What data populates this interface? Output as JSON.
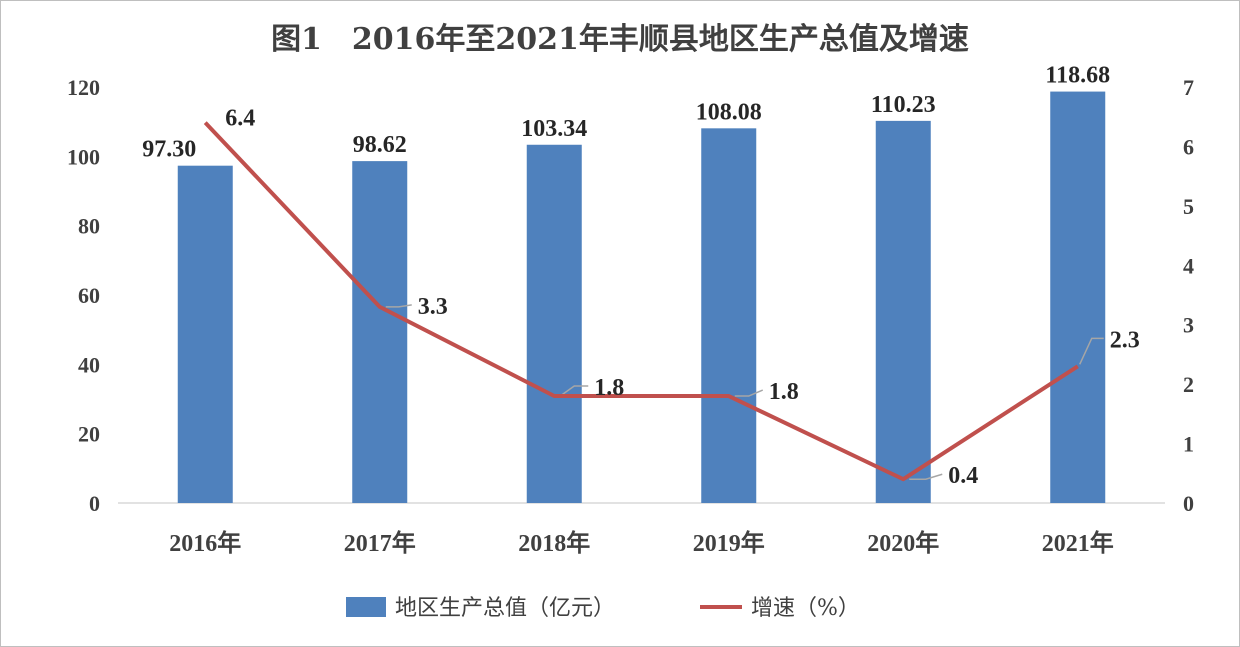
{
  "chart_data": {
    "type": "bar+line",
    "title": "图1　2016年至2021年丰顺县地区生产总值及增速",
    "categories": [
      "2016年",
      "2017年",
      "2018年",
      "2019年",
      "2020年",
      "2021年"
    ],
    "series": [
      {
        "name": "地区生产总值（亿元）",
        "type": "bar",
        "axis": "left",
        "color": "#4f81bd",
        "values": [
          97.3,
          98.62,
          103.34,
          108.08,
          110.23,
          118.68
        ],
        "labels": [
          "97.30",
          "98.62",
          "103.34",
          "108.08",
          "110.23",
          "118.68"
        ]
      },
      {
        "name": "增速（%）",
        "type": "line",
        "axis": "right",
        "color": "#c0504d",
        "values": [
          6.4,
          3.3,
          1.8,
          1.8,
          0.4,
          2.3
        ],
        "labels": [
          "6.4",
          "3.3",
          "1.8",
          "1.8",
          "0.4",
          "2.3"
        ]
      }
    ],
    "y_left": {
      "ylim": [
        0,
        120
      ],
      "ticks": [
        "0",
        "20",
        "40",
        "60",
        "80",
        "100",
        "120"
      ]
    },
    "y_right": {
      "ylim": [
        0,
        7
      ],
      "ticks": [
        "0",
        "1",
        "2",
        "3",
        "4",
        "5",
        "6",
        "7"
      ]
    },
    "grid": false,
    "legend": "bottom"
  }
}
